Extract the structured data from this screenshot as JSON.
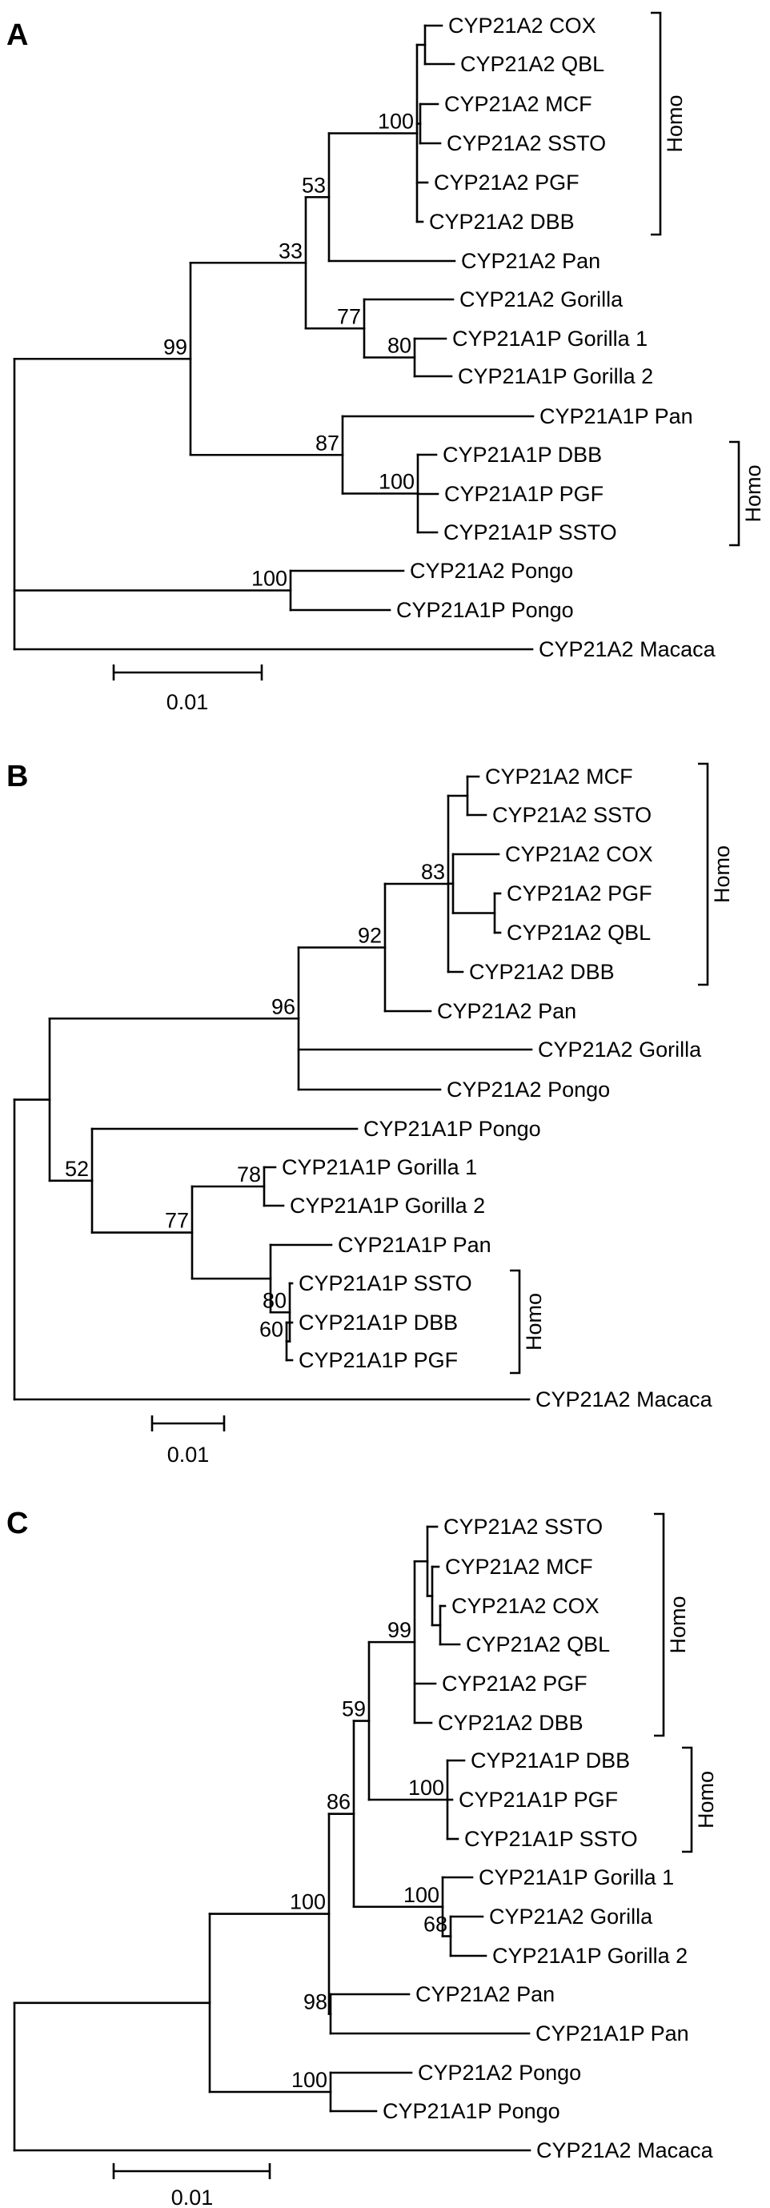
{
  "panels": [
    {
      "label": "A",
      "scale_label": "0.01",
      "tree": {
        "id": "A_root",
        "children": [
          {
            "id": "A_ingroup",
            "boot": "99",
            "children": [
              {
                "id": "A_n33",
                "boot": "33",
                "children": [
                  {
                    "id": "A_n53",
                    "boot": "53",
                    "children": [
                      {
                        "id": "A_n100h",
                        "boot": "100",
                        "children": [
                          {
                            "id": "A_cq",
                            "children": [
                              {
                                "name": "CYP21A2 COX"
                              },
                              {
                                "name": "CYP21A2 QBL"
                              }
                            ]
                          },
                          {
                            "id": "A_ms",
                            "children": [
                              {
                                "name": "CYP21A2 MCF"
                              },
                              {
                                "name": "CYP21A2 SSTO"
                              }
                            ]
                          },
                          {
                            "name": "CYP21A2 PGF"
                          },
                          {
                            "name": "CYP21A2 DBB"
                          }
                        ]
                      },
                      {
                        "name": "CYP21A2 Pan"
                      }
                    ]
                  },
                  {
                    "id": "A_n77",
                    "boot": "77",
                    "children": [
                      {
                        "name": "CYP21A2 Gorilla"
                      },
                      {
                        "id": "A_n80",
                        "boot": "80",
                        "children": [
                          {
                            "name": "CYP21A1P Gorilla 1"
                          },
                          {
                            "name": "CYP21A1P Gorilla 2"
                          }
                        ]
                      }
                    ]
                  }
                ]
              },
              {
                "id": "A_n87",
                "boot": "87",
                "children": [
                  {
                    "name": "CYP21A1P Pan"
                  },
                  {
                    "id": "A_n100p",
                    "boot": "100",
                    "children": [
                      {
                        "name": "CYP21A1P DBB"
                      },
                      {
                        "name": "CYP21A1P PGF"
                      },
                      {
                        "name": "CYP21A1P SSTO"
                      }
                    ]
                  }
                ]
              }
            ]
          },
          {
            "id": "A_pongo",
            "boot": "100",
            "children": [
              {
                "name": "CYP21A2 Pongo"
              },
              {
                "name": "CYP21A1P Pongo"
              }
            ]
          },
          {
            "name": "CYP21A2 Macaca"
          }
        ]
      },
      "brackets": [
        {
          "label": "Homo",
          "from": "CYP21A2 COX",
          "to": "CYP21A2 DBB"
        },
        {
          "label": "Homo",
          "from": "CYP21A1P DBB",
          "to": "CYP21A1P SSTO"
        }
      ]
    },
    {
      "label": "B",
      "scale_label": "0.01",
      "tree": {
        "id": "B_root",
        "children": [
          {
            "id": "B_ingroup",
            "children": [
              {
                "id": "B_n96",
                "boot": "96",
                "children": [
                  {
                    "id": "B_n92",
                    "boot": "92",
                    "children": [
                      {
                        "id": "B_n83",
                        "boot": "83",
                        "children": [
                          {
                            "id": "B_ms",
                            "children": [
                              {
                                "name": "CYP21A2 MCF"
                              },
                              {
                                "name": "CYP21A2 SSTO"
                              }
                            ]
                          },
                          {
                            "id": "B_cpq",
                            "children": [
                              {
                                "name": "CYP21A2 COX"
                              },
                              {
                                "id": "B_pq",
                                "children": [
                                  {
                                    "name": "CYP21A2 PGF"
                                  },
                                  {
                                    "name": "CYP21A2 QBL"
                                  }
                                ]
                              }
                            ]
                          },
                          {
                            "name": "CYP21A2 DBB"
                          }
                        ]
                      },
                      {
                        "name": "CYP21A2 Pan"
                      }
                    ]
                  },
                  {
                    "name": "CYP21A2 Gorilla"
                  },
                  {
                    "name": "CYP21A2 Pongo"
                  }
                ]
              },
              {
                "id": "B_n52",
                "boot": "52",
                "children": [
                  {
                    "name": "CYP21A1P Pongo"
                  },
                  {
                    "id": "B_n77",
                    "boot": "77",
                    "children": [
                      {
                        "id": "B_n78",
                        "boot": "78",
                        "children": [
                          {
                            "name": "CYP21A1P Gorilla 1"
                          },
                          {
                            "name": "CYP21A1P Gorilla 2"
                          }
                        ]
                      },
                      {
                        "id": "B_pan",
                        "children": [
                          {
                            "name": "CYP21A1P Pan"
                          },
                          {
                            "id": "B_n80",
                            "boot": "80",
                            "children": [
                              {
                                "name": "CYP21A1P SSTO"
                              },
                              {
                                "id": "B_n60",
                                "boot": "60",
                                "children": [
                                  {
                                    "name": "CYP21A1P DBB"
                                  },
                                  {
                                    "name": "CYP21A1P PGF"
                                  }
                                ]
                              }
                            ]
                          }
                        ]
                      }
                    ]
                  }
                ]
              }
            ]
          },
          {
            "name": "CYP21A2 Macaca"
          }
        ]
      },
      "brackets": [
        {
          "label": "Homo",
          "from": "CYP21A2 MCF",
          "to": "CYP21A2 DBB"
        },
        {
          "label": "Homo",
          "from": "CYP21A1P SSTO",
          "to": "CYP21A1P PGF"
        }
      ]
    },
    {
      "label": "C",
      "scale_label": "0.01",
      "tree": {
        "id": "C_root",
        "children": [
          {
            "id": "C_ingroup",
            "children": [
              {
                "id": "C_n100top",
                "boot": "100",
                "children": [
                  {
                    "id": "C_n86",
                    "boot": "86",
                    "children": [
                      {
                        "id": "C_n59",
                        "boot": "59",
                        "children": [
                          {
                            "id": "C_n99",
                            "boot": "99",
                            "children": [
                              {
                                "id": "C_smcq",
                                "children": [
                                  {
                                    "name": "CYP21A2 SSTO"
                                  },
                                  {
                                    "id": "C_mcq",
                                    "children": [
                                      {
                                        "name": "CYP21A2 MCF"
                                      },
                                      {
                                        "id": "C_cq",
                                        "children": [
                                          {
                                            "name": "CYP21A2 COX"
                                          },
                                          {
                                            "name": "CYP21A2 QBL"
                                          }
                                        ]
                                      }
                                    ]
                                  }
                                ]
                              },
                              {
                                "name": "CYP21A2 PGF"
                              },
                              {
                                "name": "CYP21A2 DBB"
                              }
                            ]
                          },
                          {
                            "id": "C_n100p",
                            "boot": "100",
                            "children": [
                              {
                                "name": "CYP21A1P DBB"
                              },
                              {
                                "name": "CYP21A1P PGF"
                              },
                              {
                                "name": "CYP21A1P SSTO"
                              }
                            ]
                          }
                        ]
                      },
                      {
                        "id": "C_n100g",
                        "boot": "100",
                        "children": [
                          {
                            "name": "CYP21A1P Gorilla 1"
                          },
                          {
                            "id": "C_n68",
                            "boot": "68",
                            "children": [
                              {
                                "name": "CYP21A2 Gorilla"
                              },
                              {
                                "name": "CYP21A1P Gorilla 2"
                              }
                            ]
                          }
                        ]
                      }
                    ]
                  },
                  {
                    "id": "C_n98",
                    "boot": "98",
                    "children": [
                      {
                        "name": "CYP21A2 Pan"
                      },
                      {
                        "name": "CYP21A1P Pan"
                      }
                    ]
                  }
                ]
              },
              {
                "id": "C_pongo",
                "boot": "100",
                "children": [
                  {
                    "name": "CYP21A2 Pongo"
                  },
                  {
                    "name": "CYP21A1P Pongo"
                  }
                ]
              }
            ]
          },
          {
            "name": "CYP21A2 Macaca"
          }
        ]
      },
      "brackets": [
        {
          "label": "Homo",
          "from": "CYP21A2 SSTO",
          "to": "CYP21A2 DBB"
        },
        {
          "label": "Homo",
          "from": "CYP21A1P DBB",
          "to": "CYP21A1P SSTO"
        }
      ]
    }
  ]
}
